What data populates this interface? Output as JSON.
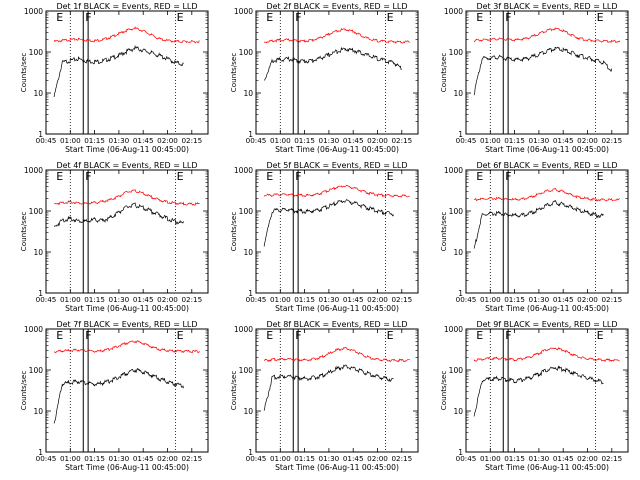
{
  "shared": {
    "type": "line",
    "xlabel": "Start Time (06-Aug-11 00:45:00)",
    "ylabel": "Counts/sec",
    "x_ticks": [
      "00:45",
      "01:00",
      "01:15",
      "01:30",
      "01:45",
      "02:00",
      "02:15"
    ],
    "y_ticks": [
      "1",
      "10",
      "100",
      "1000"
    ],
    "y_scale": "log",
    "xlim": [
      "00:45",
      "02:25"
    ],
    "ylim": [
      1,
      1000
    ],
    "marker_labels": [
      "E",
      "F",
      "E"
    ],
    "series_colors": {
      "events": "#000000",
      "lld": "#ff0000"
    },
    "data_x": [
      "00:50",
      "00:55",
      "01:00",
      "01:05",
      "01:10",
      "01:15",
      "01:20",
      "01:25",
      "01:30",
      "01:35",
      "01:40",
      "01:45",
      "01:50",
      "01:55",
      "02:00",
      "02:05",
      "02:10",
      "02:15",
      "02:20"
    ]
  },
  "chart_data": [
    {
      "type": "line",
      "title": "Det 1f BLACK = Events, RED = LLD",
      "events": [
        8,
        55,
        62,
        68,
        60,
        58,
        60,
        70,
        82,
        105,
        125,
        110,
        95,
        82,
        68,
        55,
        50,
        null,
        null
      ],
      "lld": [
        180,
        190,
        200,
        205,
        195,
        188,
        200,
        230,
        280,
        340,
        380,
        330,
        260,
        210,
        190,
        182,
        180,
        178,
        180
      ],
      "lines": [
        "01:00",
        "01:08",
        "01:11",
        "02:05"
      ]
    },
    {
      "type": "line",
      "title": "Det 2f BLACK = Events, RED = LLD",
      "events": [
        20,
        60,
        65,
        68,
        62,
        60,
        62,
        72,
        85,
        105,
        120,
        110,
        95,
        80,
        70,
        60,
        55,
        40,
        null
      ],
      "lld": [
        175,
        185,
        195,
        198,
        190,
        185,
        195,
        225,
        270,
        330,
        360,
        320,
        250,
        205,
        188,
        180,
        178,
        176,
        180
      ],
      "lines": [
        "01:00",
        "01:08",
        "01:11",
        "02:05"
      ]
    },
    {
      "type": "line",
      "title": "Det 3f BLACK = Events, RED = LLD",
      "events": [
        10,
        70,
        72,
        75,
        68,
        64,
        66,
        74,
        88,
        108,
        122,
        112,
        96,
        82,
        72,
        62,
        55,
        35,
        null
      ],
      "lld": [
        190,
        195,
        205,
        208,
        200,
        195,
        205,
        230,
        280,
        340,
        370,
        330,
        260,
        215,
        195,
        188,
        185,
        182,
        185
      ],
      "lines": [
        "01:00",
        "01:08",
        "01:11",
        "02:05"
      ]
    },
    {
      "type": "line",
      "title": "Det 4f BLACK = Events, RED = LLD",
      "events": [
        40,
        60,
        65,
        58,
        55,
        62,
        58,
        70,
        95,
        125,
        140,
        120,
        100,
        80,
        65,
        55,
        50,
        null,
        null
      ],
      "lld": [
        150,
        160,
        165,
        158,
        150,
        160,
        170,
        190,
        230,
        290,
        310,
        270,
        220,
        185,
        165,
        155,
        150,
        148,
        150
      ],
      "lines": [
        "01:00",
        "01:08",
        "01:11",
        "02:05"
      ]
    },
    {
      "type": "line",
      "title": "Det 5f BLACK = Events, RED = LLD",
      "events": [
        15,
        100,
        105,
        110,
        100,
        98,
        100,
        110,
        130,
        160,
        180,
        160,
        135,
        115,
        100,
        90,
        85,
        null,
        null
      ],
      "lld": [
        240,
        245,
        250,
        255,
        245,
        240,
        245,
        270,
        320,
        380,
        410,
        370,
        310,
        270,
        250,
        240,
        235,
        232,
        235
      ],
      "lines": [
        "01:00",
        "01:08",
        "01:11",
        "02:05"
      ]
    },
    {
      "type": "line",
      "title": "Det 6f BLACK = Events, RED = LLD",
      "events": [
        12,
        80,
        85,
        88,
        82,
        78,
        80,
        90,
        110,
        140,
        160,
        145,
        125,
        105,
        90,
        80,
        75,
        null,
        null
      ],
      "lld": [
        190,
        195,
        200,
        202,
        195,
        190,
        198,
        220,
        260,
        310,
        330,
        300,
        250,
        215,
        198,
        190,
        188,
        186,
        188
      ],
      "lines": [
        "01:00",
        "01:08",
        "01:11",
        "02:05"
      ]
    },
    {
      "type": "line",
      "title": "Det 7f BLACK = Events, RED = LLD",
      "events": [
        5,
        45,
        50,
        52,
        48,
        45,
        48,
        55,
        68,
        85,
        100,
        90,
        75,
        62,
        52,
        45,
        40,
        null,
        null
      ],
      "lld": [
        280,
        290,
        300,
        305,
        295,
        285,
        295,
        330,
        390,
        460,
        500,
        450,
        370,
        320,
        300,
        290,
        285,
        282,
        285
      ],
      "lines": [
        "01:00",
        "01:08",
        "01:11",
        "02:05"
      ]
    },
    {
      "type": "line",
      "title": "Det 8f BLACK = Events, RED = LLD",
      "events": [
        10,
        65,
        70,
        72,
        66,
        62,
        64,
        72,
        86,
        108,
        122,
        110,
        94,
        80,
        70,
        62,
        58,
        null,
        null
      ],
      "lld": [
        170,
        178,
        185,
        188,
        180,
        175,
        182,
        205,
        250,
        310,
        340,
        300,
        240,
        200,
        182,
        175,
        172,
        170,
        172
      ],
      "lines": [
        "01:00",
        "01:08",
        "01:11",
        "02:05"
      ]
    },
    {
      "type": "line",
      "title": "Det 9f BLACK = Events, RED = LLD",
      "events": [
        8,
        55,
        60,
        62,
        58,
        55,
        58,
        66,
        80,
        100,
        115,
        104,
        88,
        74,
        64,
        56,
        50,
        null,
        null
      ],
      "lld": [
        175,
        182,
        190,
        192,
        185,
        180,
        188,
        210,
        255,
        315,
        345,
        305,
        245,
        205,
        188,
        180,
        176,
        174,
        176
      ],
      "lines": [
        "01:00",
        "01:08",
        "01:11",
        "02:05"
      ]
    }
  ]
}
